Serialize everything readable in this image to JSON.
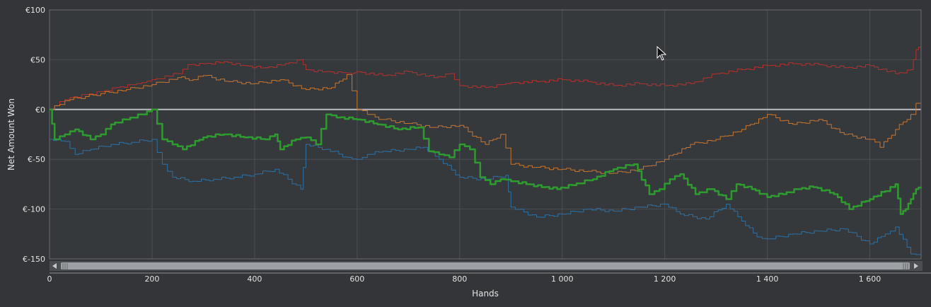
{
  "chart_data": {
    "type": "line",
    "xlabel": "Hands",
    "ylabel": "Net Amount Won",
    "xlim": [
      0,
      1700
    ],
    "ylim": [
      -150,
      100
    ],
    "x_ticks": [
      0,
      200,
      400,
      600,
      800,
      1000,
      1200,
      1400,
      1600
    ],
    "x_tick_labels": [
      "0",
      "200",
      "400",
      "600",
      "800",
      "1 000",
      "1 200",
      "1 400",
      "1 600"
    ],
    "y_ticks": [
      100,
      50,
      0,
      -50,
      -100,
      -150
    ],
    "y_tick_labels": [
      "€100",
      "€50",
      "€0",
      "€-50",
      "€-100",
      "€-150"
    ],
    "grid": true,
    "legend": "none",
    "series": [
      {
        "color": "#b5302b",
        "x": [
          0,
          20,
          40,
          70,
          100,
          130,
          160,
          180,
          200,
          250,
          270,
          300,
          340,
          380,
          420,
          460,
          490,
          500,
          540,
          570,
          590,
          600,
          650,
          700,
          750,
          780,
          800,
          850,
          880,
          900,
          950,
          1000,
          1050,
          1100,
          1150,
          1200,
          1250,
          1300,
          1350,
          1400,
          1450,
          1500,
          1550,
          1600,
          1650,
          1680,
          1690,
          1700
        ],
        "values": [
          0,
          8,
          12,
          15,
          18,
          22,
          25,
          27,
          30,
          36,
          45,
          46,
          48,
          44,
          42,
          46,
          50,
          40,
          38,
          37,
          36,
          38,
          34,
          38,
          32,
          36,
          24,
          22,
          25,
          27,
          28,
          30,
          28,
          24,
          26,
          24,
          26,
          36,
          40,
          44,
          46,
          45,
          42,
          44,
          36,
          40,
          60,
          65
        ]
      },
      {
        "color": "#c8752c",
        "x": [
          0,
          20,
          40,
          70,
          100,
          150,
          200,
          250,
          280,
          300,
          350,
          400,
          450,
          500,
          550,
          580,
          600,
          620,
          650,
          700,
          750,
          800,
          850,
          880,
          900,
          950,
          1000,
          1050,
          1100,
          1150,
          1200,
          1250,
          1300,
          1350,
          1400,
          1450,
          1500,
          1550,
          1600,
          1620,
          1650,
          1680,
          1700
        ],
        "values": [
          0,
          5,
          10,
          13,
          16,
          20,
          25,
          32,
          30,
          34,
          28,
          26,
          30,
          20,
          22,
          35,
          0,
          -5,
          -10,
          -14,
          -18,
          -16,
          -35,
          -25,
          -55,
          -58,
          -60,
          -62,
          -64,
          -60,
          -50,
          -35,
          -30,
          -20,
          -5,
          -15,
          -10,
          -25,
          -30,
          -38,
          -20,
          -5,
          15
        ]
      },
      {
        "color": "#2a71a6",
        "x": [
          0,
          30,
          50,
          80,
          120,
          160,
          200,
          220,
          240,
          280,
          320,
          360,
          400,
          440,
          490,
          500,
          540,
          580,
          600,
          620,
          650,
          700,
          730,
          760,
          800,
          850,
          890,
          900,
          950,
          1000,
          1050,
          1100,
          1150,
          1200,
          1230,
          1280,
          1320,
          1350,
          1380,
          1400,
          1450,
          1500,
          1550,
          1600,
          1630,
          1650,
          1680,
          1700
        ],
        "values": [
          -30,
          -32,
          -45,
          -40,
          -35,
          -33,
          -30,
          -55,
          -68,
          -72,
          -70,
          -68,
          -65,
          -60,
          -80,
          -35,
          -40,
          -48,
          -50,
          -45,
          -42,
          -40,
          -38,
          -50,
          -68,
          -70,
          -66,
          -98,
          -108,
          -105,
          -100,
          -102,
          -98,
          -95,
          -105,
          -110,
          -95,
          -112,
          -128,
          -130,
          -125,
          -122,
          -120,
          -135,
          -125,
          -118,
          -145,
          -145
        ]
      },
      {
        "color": "#2e9b2f",
        "width": 2.5,
        "x": [
          0,
          10,
          30,
          50,
          80,
          100,
          120,
          150,
          180,
          200,
          220,
          240,
          260,
          300,
          340,
          380,
          420,
          440,
          450,
          480,
          500,
          520,
          540,
          560,
          600,
          640,
          680,
          720,
          740,
          760,
          780,
          800,
          820,
          840,
          860,
          880,
          900,
          930,
          960,
          990,
          1020,
          1060,
          1100,
          1140,
          1170,
          1190,
          1210,
          1230,
          1260,
          1290,
          1320,
          1340,
          1370,
          1400,
          1430,
          1460,
          1490,
          1530,
          1560,
          1600,
          1630,
          1650,
          1660,
          1670,
          1680,
          1690,
          1700
        ],
        "values": [
          0,
          -30,
          -25,
          -20,
          -30,
          -25,
          -15,
          -10,
          -5,
          0,
          -30,
          -35,
          -40,
          -28,
          -25,
          -28,
          -30,
          -25,
          -40,
          -30,
          -28,
          -35,
          -5,
          -8,
          -10,
          -15,
          -20,
          -18,
          -42,
          -45,
          -48,
          -35,
          -40,
          -68,
          -75,
          -70,
          -72,
          -75,
          -78,
          -80,
          -76,
          -70,
          -60,
          -55,
          -85,
          -80,
          -70,
          -65,
          -85,
          -80,
          -90,
          -75,
          -80,
          -88,
          -85,
          -80,
          -78,
          -85,
          -100,
          -90,
          -82,
          -75,
          -105,
          -100,
          -90,
          -80,
          -78
        ]
      }
    ]
  }
}
